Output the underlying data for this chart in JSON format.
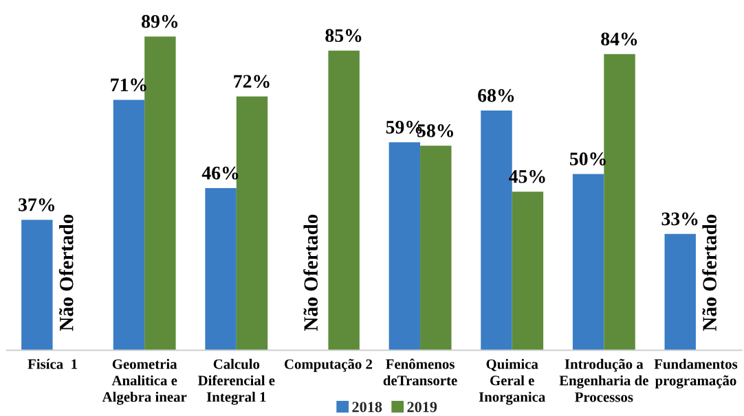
{
  "chart_data": {
    "type": "bar",
    "categories": [
      "Fisíca  1",
      "Geometria\nAnalitica e\nAlgebra inear",
      "Calculo\nDiferencial e\nIntegral 1",
      "Computação 2",
      "Fenômenos\ndeTransorte",
      "Quimica\nGeral e\nInorganica",
      "Introdução a\nEngenharia de\nProcessos",
      "Fundamentos\nprogramação"
    ],
    "series": [
      {
        "name": "2018",
        "color": "#3a7dc4",
        "values": [
          37,
          71,
          46,
          null,
          59,
          68,
          50,
          33
        ],
        "value_labels": [
          "37%",
          "71%",
          "46%",
          "Não Ofertado",
          "59%",
          "68%",
          "50%",
          "33%"
        ]
      },
      {
        "name": "2019",
        "color": "#5e8c3b",
        "values": [
          null,
          89,
          72,
          85,
          58,
          45,
          84,
          null
        ],
        "value_labels": [
          "Não Ofertado",
          "89%",
          "72%",
          "85%",
          "58%",
          "45%",
          "84%",
          "Não Ofertado"
        ]
      }
    ],
    "tick_labels": "x",
    "legend": "bottom"
  }
}
